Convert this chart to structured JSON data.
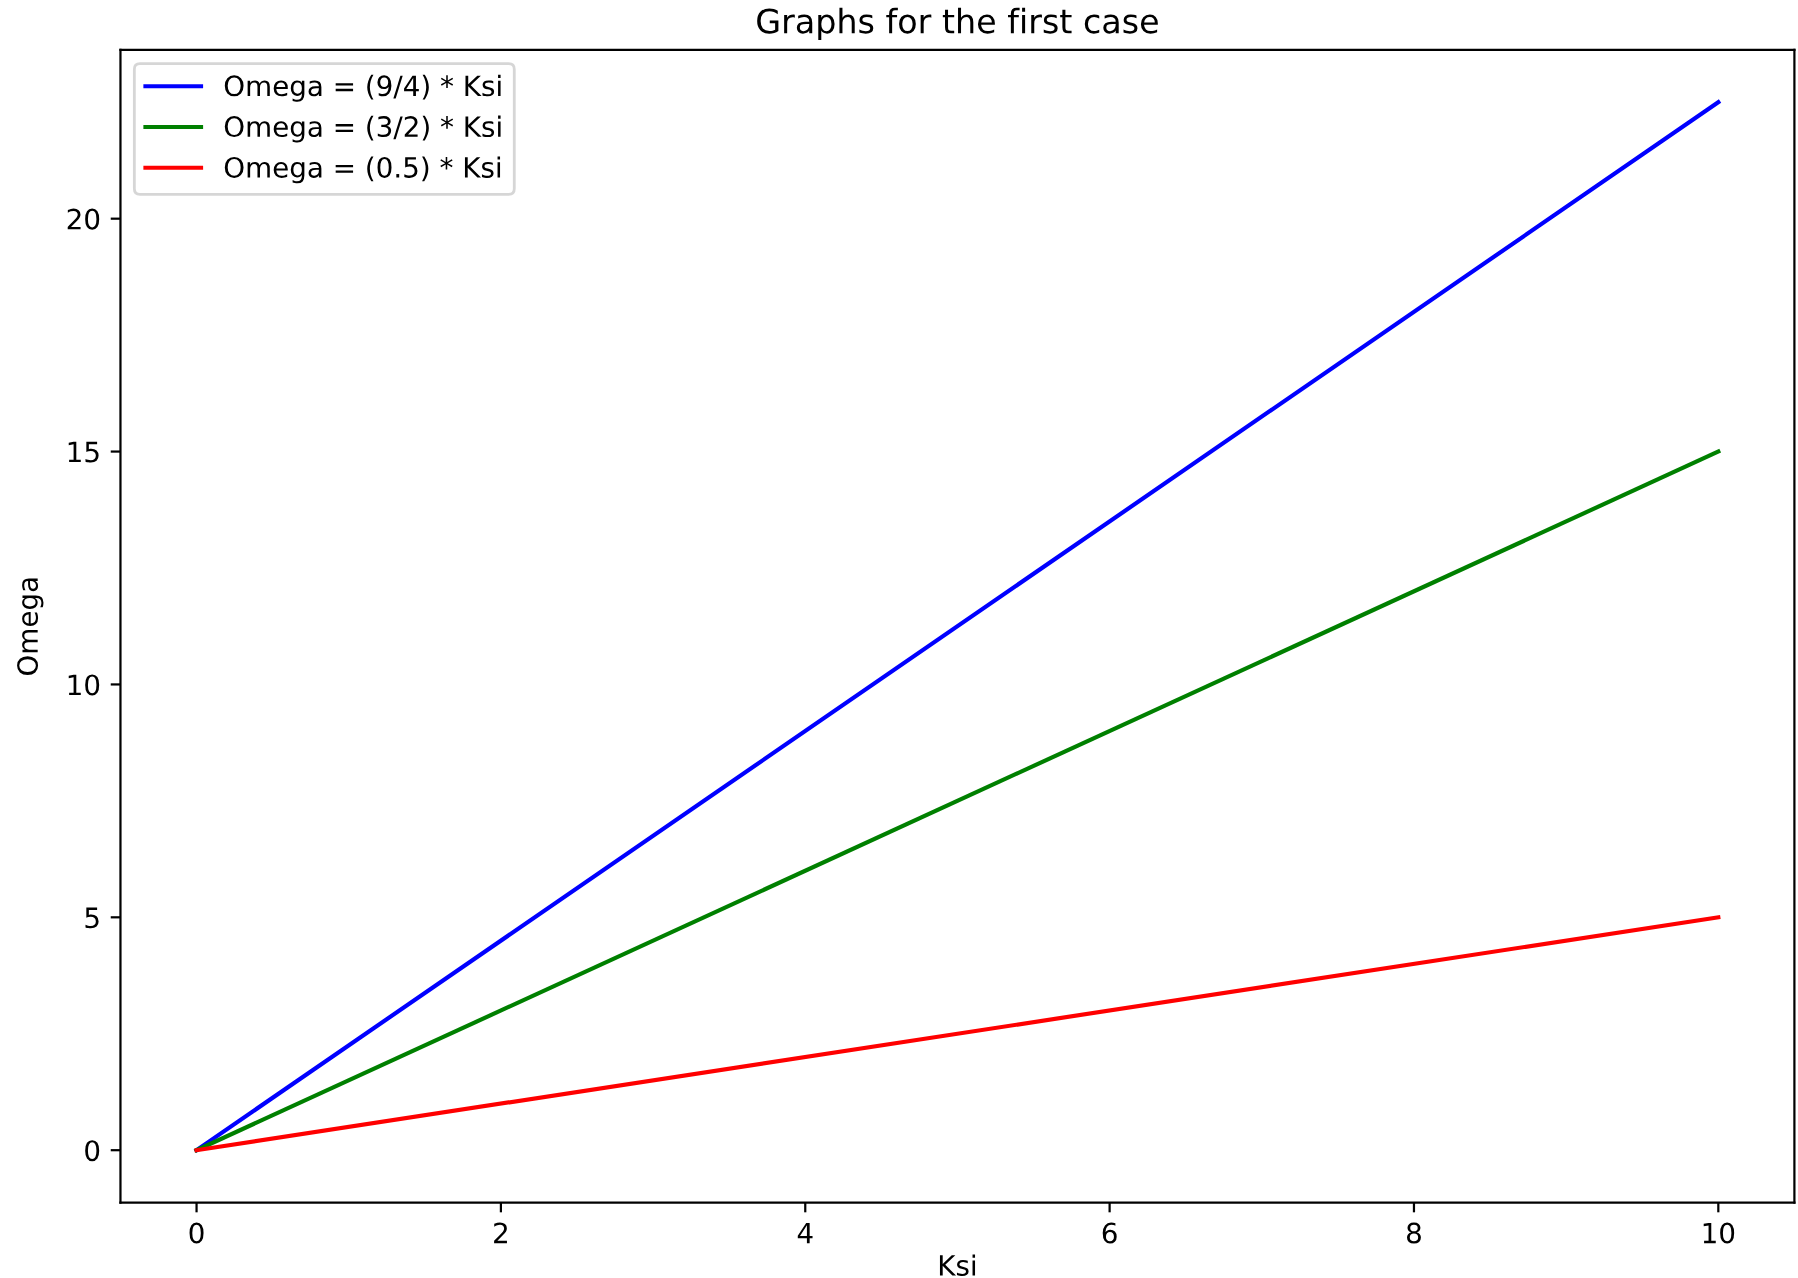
{
  "chart_data": {
    "type": "line",
    "title": "Graphs for the first case",
    "xlabel": "Ksi",
    "ylabel": "Omega",
    "x": [
      0,
      10
    ],
    "series": [
      {
        "name": "Omega = (9/4) * Ksi",
        "color": "#0000ff",
        "values": [
          0,
          22.5
        ]
      },
      {
        "name": "Omega = (3/2) * Ksi",
        "color": "#008000",
        "values": [
          0,
          15
        ]
      },
      {
        "name": "Omega = (0.5) * Ksi",
        "color": "#ff0000",
        "values": [
          0,
          5
        ]
      }
    ],
    "xlim": [
      -0.5,
      10.5
    ],
    "ylim": [
      -1.125,
      23.625
    ],
    "xticks": [
      0,
      2,
      4,
      6,
      8,
      10
    ],
    "yticks": [
      0,
      5,
      10,
      15,
      20
    ],
    "grid": false,
    "legend": "top left",
    "marker": "none",
    "line_style": "solid"
  }
}
